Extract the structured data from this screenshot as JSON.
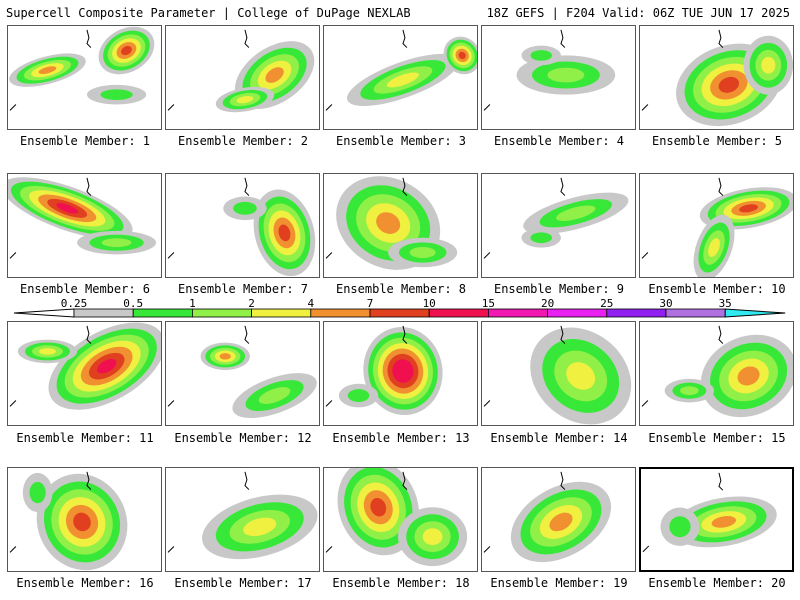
{
  "header": {
    "title": "Supercell Composite Parameter | College of DuPage NEXLAB",
    "run_info": "18Z GEFS | F204 Valid: 06Z TUE JUN 17 2025"
  },
  "legend": {
    "ticks": [
      "0.25",
      "0.5",
      "1",
      "2",
      "4",
      "7",
      "10",
      "15",
      "20",
      "25",
      "30",
      "35"
    ],
    "colors": [
      "#c8c8c8",
      "#38e838",
      "#90f048",
      "#f0f040",
      "#f09030",
      "#e04020",
      "#f01050",
      "#f018b0",
      "#e820f0",
      "#9020f0",
      "#b070e0",
      "#30e8f0"
    ]
  },
  "member_label_prefix": "Ensemble Member: ",
  "selected_member": 20,
  "members": [
    {
      "label": "Ensemble Member: 1"
    },
    {
      "label": "Ensemble Member: 2"
    },
    {
      "label": "Ensemble Member: 3"
    },
    {
      "label": "Ensemble Member: 4"
    },
    {
      "label": "Ensemble Member: 5"
    },
    {
      "label": "Ensemble Member: 6"
    },
    {
      "label": "Ensemble Member: 7"
    },
    {
      "label": "Ensemble Member: 8"
    },
    {
      "label": "Ensemble Member: 9"
    },
    {
      "label": "Ensemble Member: 10"
    },
    {
      "label": "Ensemble Member: 11"
    },
    {
      "label": "Ensemble Member: 12"
    },
    {
      "label": "Ensemble Member: 13"
    },
    {
      "label": "Ensemble Member: 14"
    },
    {
      "label": "Ensemble Member: 15"
    },
    {
      "label": "Ensemble Member: 16"
    },
    {
      "label": "Ensemble Member: 17"
    },
    {
      "label": "Ensemble Member: 18"
    },
    {
      "label": "Ensemble Member: 19"
    },
    {
      "label": "Ensemble Member: 20"
    }
  ]
}
